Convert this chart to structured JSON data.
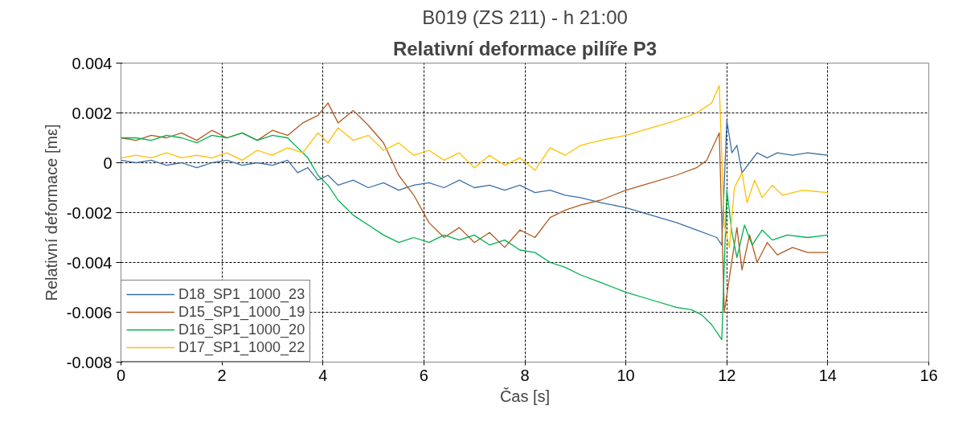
{
  "chart_data": {
    "type": "line",
    "subtitle": "B019 (ZS 211) - h 21:00",
    "title": "Relativní deformace pilíře P3",
    "xlabel": "Čas [s]",
    "ylabel": "Relativní deformace [mε]",
    "xlim": [
      0,
      16
    ],
    "xticks": [
      0,
      2,
      4,
      6,
      8,
      10,
      12,
      14,
      16
    ],
    "ylim": [
      -0.008,
      0.004
    ],
    "yticks": [
      -0.008,
      -0.006,
      -0.004,
      -0.002,
      0,
      0.002,
      0.004
    ],
    "grid": true,
    "legend": "bottom left",
    "marker": "none",
    "line_style": "solid",
    "series": [
      {
        "name": "D18_SP1_1000_23",
        "color": "#3b6fa8",
        "x": [
          0,
          0.3,
          0.6,
          0.9,
          1.2,
          1.5,
          1.8,
          2.1,
          2.4,
          2.7,
          3.0,
          3.3,
          3.5,
          3.7,
          3.9,
          4.1,
          4.3,
          4.6,
          4.9,
          5.2,
          5.5,
          5.8,
          6.1,
          6.4,
          6.7,
          7.0,
          7.3,
          7.6,
          7.9,
          8.2,
          8.5,
          8.8,
          9.1,
          9.5,
          10,
          10.5,
          11,
          11.4,
          11.8,
          11.9,
          12.0,
          12.1,
          12.2,
          12.3,
          12.45,
          12.6,
          12.8,
          13.0,
          13.3,
          13.6,
          14.0
        ],
        "values": [
          0.0001,
          0,
          0.0001,
          -0.0001,
          0,
          -0.0002,
          0,
          0.0001,
          -0.0001,
          0,
          -0.0001,
          0.0001,
          -0.0004,
          -0.0002,
          -0.0007,
          -0.0005,
          -0.0009,
          -0.0007,
          -0.001,
          -0.0008,
          -0.0011,
          -0.0009,
          -0.0008,
          -0.001,
          -0.0007,
          -0.001,
          -0.0009,
          -0.0011,
          -0.0009,
          -0.0012,
          -0.0011,
          -0.0013,
          -0.0014,
          -0.0016,
          -0.0018,
          -0.0021,
          -0.0024,
          -0.0027,
          -0.003,
          -0.0033,
          0.0017,
          0.0004,
          0.0007,
          -0.0004,
          0.0,
          0.0004,
          0.0002,
          0.0004,
          0.0003,
          0.0004,
          0.0003
        ]
      },
      {
        "name": "D15_SP1_1000_19",
        "color": "#b35a1f",
        "x": [
          0,
          0.3,
          0.6,
          0.9,
          1.2,
          1.5,
          1.8,
          2.1,
          2.4,
          2.7,
          3.0,
          3.3,
          3.6,
          3.9,
          4.1,
          4.3,
          4.6,
          4.9,
          5.2,
          5.5,
          5.8,
          6.1,
          6.4,
          6.7,
          7.0,
          7.3,
          7.6,
          7.9,
          8.2,
          8.5,
          8.8,
          9.1,
          9.5,
          10,
          10.5,
          11,
          11.4,
          11.6,
          11.85,
          11.95,
          12.05,
          12.2,
          12.3,
          12.45,
          12.6,
          12.8,
          13.0,
          13.3,
          13.6,
          14.0
        ],
        "values": [
          0.001,
          0.0009,
          0.0011,
          0.001,
          0.0012,
          0.0009,
          0.0013,
          0.001,
          0.0012,
          0.0009,
          0.0013,
          0.0011,
          0.0016,
          0.0019,
          0.0024,
          0.0016,
          0.0021,
          0.0015,
          0.0008,
          -0.0005,
          -0.0013,
          -0.0024,
          -0.003,
          -0.0026,
          -0.0032,
          -0.0028,
          -0.0034,
          -0.0027,
          -0.003,
          -0.0022,
          -0.0019,
          -0.0017,
          -0.0015,
          -0.0011,
          -0.0008,
          -0.0005,
          -0.0002,
          0.0001,
          0.0012,
          -0.006,
          -0.0046,
          -0.0026,
          -0.0043,
          -0.0029,
          -0.004,
          -0.0032,
          -0.0037,
          -0.0034,
          -0.0036,
          -0.0036
        ]
      },
      {
        "name": "D16_SP1_1000_20",
        "color": "#00b050",
        "x": [
          0,
          0.3,
          0.6,
          0.9,
          1.2,
          1.5,
          1.8,
          2.1,
          2.4,
          2.7,
          3.0,
          3.3,
          3.5,
          3.7,
          3.9,
          4.1,
          4.3,
          4.6,
          4.9,
          5.2,
          5.5,
          5.8,
          6.1,
          6.4,
          6.7,
          7.0,
          7.3,
          7.6,
          7.9,
          8.2,
          8.5,
          8.8,
          9.1,
          9.5,
          10,
          10.5,
          11,
          11.3,
          11.5,
          11.7,
          11.9,
          12.0,
          12.1,
          12.2,
          12.35,
          12.5,
          12.7,
          12.9,
          13.2,
          13.6,
          14.0
        ],
        "values": [
          0.001,
          0.001,
          0.0009,
          0.0011,
          0.001,
          0.0008,
          0.0011,
          0.001,
          0.0012,
          0.0009,
          0.0011,
          0.001,
          0.0006,
          0.0002,
          -0.0005,
          -0.0009,
          -0.0015,
          -0.0021,
          -0.0025,
          -0.0029,
          -0.0032,
          -0.003,
          -0.0032,
          -0.0029,
          -0.0031,
          -0.0029,
          -0.0033,
          -0.0031,
          -0.0035,
          -0.0036,
          -0.004,
          -0.0042,
          -0.0045,
          -0.0048,
          -0.0052,
          -0.0055,
          -0.0058,
          -0.0059,
          -0.0061,
          -0.0065,
          -0.0071,
          -0.0011,
          -0.0028,
          -0.0038,
          -0.0025,
          -0.0033,
          -0.0027,
          -0.0031,
          -0.0029,
          -0.003,
          -0.0029
        ]
      },
      {
        "name": "D17_SP1_1000_22",
        "color": "#ffc000",
        "x": [
          0,
          0.3,
          0.6,
          0.9,
          1.2,
          1.5,
          1.8,
          2.1,
          2.4,
          2.7,
          3.0,
          3.3,
          3.6,
          3.9,
          4.1,
          4.3,
          4.6,
          4.9,
          5.2,
          5.5,
          5.8,
          6.1,
          6.4,
          6.7,
          7.0,
          7.3,
          7.6,
          7.9,
          8.2,
          8.5,
          8.8,
          9.1,
          9.5,
          10,
          10.5,
          11,
          11.4,
          11.7,
          11.85,
          11.95,
          12.05,
          12.15,
          12.3,
          12.4,
          12.55,
          12.7,
          12.9,
          13.1,
          13.5,
          14.0
        ],
        "values": [
          0.0002,
          0.0003,
          0.0002,
          0.0004,
          0.0002,
          0.0003,
          0.0002,
          0.0004,
          0.0001,
          0.0005,
          0.0003,
          0.0006,
          0.0004,
          0.0012,
          0.0008,
          0.0014,
          0.0009,
          0.0011,
          0.0005,
          0.0008,
          0.0003,
          0.0005,
          0.0001,
          0.0004,
          -0.0002,
          0.0003,
          -0.0001,
          0.0002,
          -0.0003,
          0.0006,
          0.0003,
          0.0007,
          0.0009,
          0.0011,
          0.0014,
          0.0017,
          0.002,
          0.0024,
          0.0031,
          -0.0025,
          -0.0034,
          -0.001,
          -0.0004,
          -0.0016,
          -0.0007,
          -0.0014,
          -0.0009,
          -0.0013,
          -0.0011,
          -0.0012
        ]
      }
    ]
  }
}
